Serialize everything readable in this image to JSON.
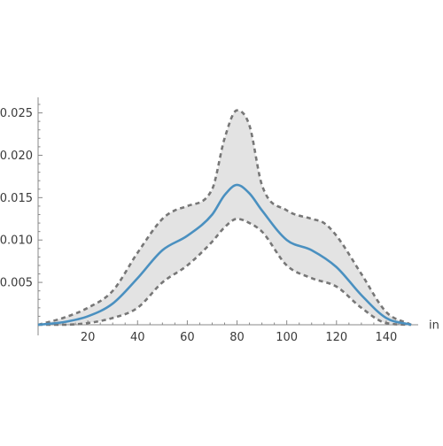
{
  "chart_data": {
    "type": "area",
    "title": "",
    "xlabel": "in",
    "ylabel": "",
    "xlim": [
      0,
      150
    ],
    "ylim": [
      0,
      0.026
    ],
    "grid": false,
    "legend": "none",
    "x_ticks": [
      20,
      40,
      60,
      80,
      100,
      120,
      140
    ],
    "x_tick_labels": [
      "20",
      "40",
      "60",
      "80",
      "100",
      "120",
      "140"
    ],
    "y_ticks": [
      0.005,
      0.01,
      0.015,
      0.02,
      0.025
    ],
    "y_tick_labels": [
      "0.005",
      "0.010",
      "0.015",
      "0.020",
      "0.025"
    ],
    "series": [
      {
        "role": "estimate",
        "color": "#4a90c0",
        "style": "solid",
        "x": [
          0,
          10,
          20,
          30,
          40,
          50,
          60,
          70,
          75,
          80,
          85,
          90,
          100,
          110,
          120,
          130,
          140,
          150
        ],
        "y": [
          0,
          0.0003,
          0.001,
          0.0025,
          0.0055,
          0.0088,
          0.0105,
          0.013,
          0.0153,
          0.0165,
          0.0155,
          0.0135,
          0.01,
          0.0088,
          0.0068,
          0.0035,
          0.0008,
          0
        ]
      },
      {
        "role": "upper-bound",
        "color": "#777777",
        "style": "dashed",
        "x": [
          0,
          10,
          20,
          30,
          40,
          50,
          55,
          60,
          70,
          75,
          80,
          85,
          90,
          100,
          110,
          115,
          120,
          130,
          140,
          150
        ],
        "y": [
          0,
          0.0008,
          0.002,
          0.004,
          0.0085,
          0.0125,
          0.0135,
          0.014,
          0.016,
          0.022,
          0.0253,
          0.0235,
          0.0165,
          0.0135,
          0.0125,
          0.012,
          0.0105,
          0.006,
          0.0015,
          0
        ]
      },
      {
        "role": "lower-bound",
        "color": "#777777",
        "style": "dashed",
        "x": [
          0,
          10,
          20,
          30,
          40,
          50,
          60,
          70,
          75,
          80,
          85,
          90,
          100,
          110,
          120,
          130,
          140,
          150
        ],
        "y": [
          0,
          0,
          0.0002,
          0.0008,
          0.002,
          0.005,
          0.007,
          0.0098,
          0.0115,
          0.0125,
          0.012,
          0.011,
          0.007,
          0.0055,
          0.0045,
          0.002,
          0.0002,
          0
        ]
      }
    ],
    "band": {
      "between": [
        "upper-bound",
        "lower-bound"
      ],
      "color": "#e3e3e3"
    }
  }
}
